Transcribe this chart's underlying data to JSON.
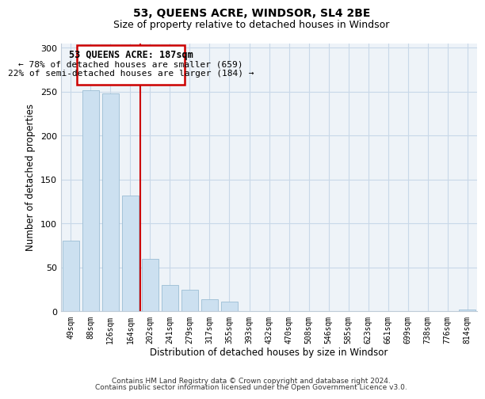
{
  "title": "53, QUEENS ACRE, WINDSOR, SL4 2BE",
  "subtitle": "Size of property relative to detached houses in Windsor",
  "xlabel": "Distribution of detached houses by size in Windsor",
  "ylabel": "Number of detached properties",
  "bar_labels": [
    "49sqm",
    "88sqm",
    "126sqm",
    "164sqm",
    "202sqm",
    "241sqm",
    "279sqm",
    "317sqm",
    "355sqm",
    "393sqm",
    "432sqm",
    "470sqm",
    "508sqm",
    "546sqm",
    "585sqm",
    "623sqm",
    "661sqm",
    "699sqm",
    "738sqm",
    "776sqm",
    "814sqm"
  ],
  "bar_values": [
    80,
    251,
    248,
    132,
    60,
    30,
    25,
    14,
    11,
    0,
    0,
    0,
    0,
    0,
    0,
    0,
    0,
    0,
    0,
    0,
    2
  ],
  "bar_color": "#cce0f0",
  "bar_edge_color": "#9bbdd4",
  "marker_label": "53 QUEENS ACRE: 187sqm",
  "annotation_line1": "← 78% of detached houses are smaller (659)",
  "annotation_line2": "22% of semi-detached houses are larger (184) →",
  "vline_color": "#cc0000",
  "box_edge_color": "#cc0000",
  "ylim": [
    0,
    305
  ],
  "yticks": [
    0,
    50,
    100,
    150,
    200,
    250,
    300
  ],
  "footer1": "Contains HM Land Registry data © Crown copyright and database right 2024.",
  "footer2": "Contains public sector information licensed under the Open Government Licence v3.0.",
  "bg_color": "#eef3f8",
  "title_fontsize": 10,
  "subtitle_fontsize": 9
}
